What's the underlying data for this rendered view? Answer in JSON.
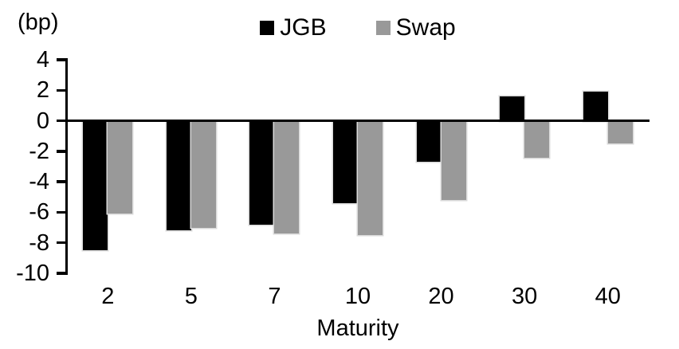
{
  "unit_label": "(bp)",
  "x_axis_title": "Maturity",
  "colors": {
    "jgb": "#000000",
    "swap": "#999999",
    "axis": "#000000"
  },
  "chart_data": {
    "type": "bar",
    "title": "",
    "categories": [
      "2",
      "5",
      "7",
      "10",
      "20",
      "30",
      "40"
    ],
    "series": [
      {
        "name": "JGB",
        "color": "#000000",
        "values": [
          -8.5,
          -7.2,
          -6.8,
          -5.4,
          -2.7,
          1.6,
          1.9
        ]
      },
      {
        "name": "Swap",
        "color": "#999999",
        "values": [
          -6.1,
          -7.0,
          -7.4,
          -7.5,
          -5.2,
          -2.4,
          -1.5
        ]
      }
    ],
    "xlabel": "Maturity",
    "ylabel": "(bp)",
    "ylim": [
      -10,
      4
    ],
    "yticks": [
      4,
      2,
      0,
      -2,
      -4,
      -6,
      -8,
      -10
    ],
    "grid": false,
    "legend_position": "top-center"
  }
}
